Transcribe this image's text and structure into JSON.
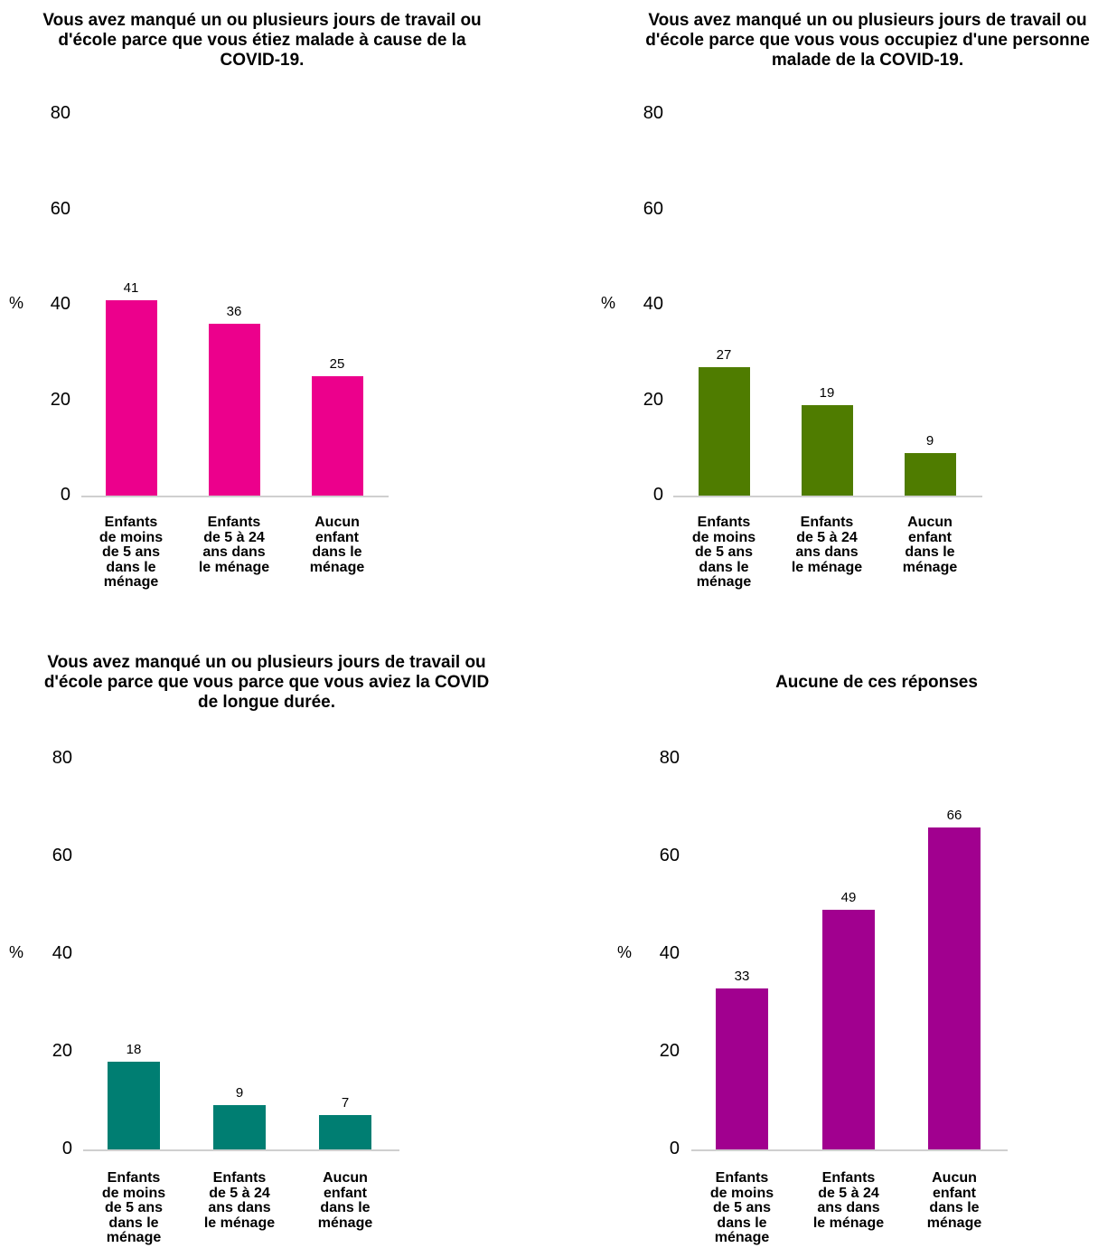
{
  "chart_data": [
    {
      "type": "bar",
      "title": "Vous avez manqué un ou plusieurs jours de travail ou d'école parce que vous étiez malade à cause de la COVID-19.",
      "ylabel": "%",
      "ylim": [
        0,
        80
      ],
      "yticks": [
        "0",
        "20",
        "40",
        "60",
        "80"
      ],
      "categories": [
        "Enfants de moins de 5 ans dans le ménage",
        "Enfants de 5 à 24 ans dans le ménage",
        "Aucun enfant dans le ménage"
      ],
      "values": [
        41,
        36,
        25
      ],
      "color": "#ec008c",
      "grid": false
    },
    {
      "type": "bar",
      "title": "Vous avez manqué un ou plusieurs jours de travail ou d'école parce que vous vous occupiez d'une personne malade de la COVID-19.",
      "ylabel": "%",
      "ylim": [
        0,
        80
      ],
      "yticks": [
        "0",
        "20",
        "40",
        "60",
        "80"
      ],
      "categories": [
        "Enfants de moins de 5 ans dans le ménage",
        "Enfants de 5 à 24 ans dans le ménage",
        "Aucun enfant dans le ménage"
      ],
      "values": [
        27,
        19,
        9
      ],
      "color": "#4f7c00",
      "grid": false
    },
    {
      "type": "bar",
      "title": "Vous avez manqué un ou plusieurs jours de travail ou d'école parce que vous parce que vous aviez la COVID de longue durée.",
      "ylabel": "%",
      "ylim": [
        0,
        80
      ],
      "yticks": [
        "0",
        "20",
        "40",
        "60",
        "80"
      ],
      "categories": [
        "Enfants de moins de 5 ans dans le ménage",
        "Enfants de 5 à 24 ans dans le ménage",
        "Aucun enfant dans le ménage"
      ],
      "values": [
        18,
        9,
        7
      ],
      "color": "#007e72",
      "grid": false
    },
    {
      "type": "bar",
      "title": "Aucune de ces réponses",
      "ylabel": "%",
      "ylim": [
        0,
        80
      ],
      "yticks": [
        "0",
        "20",
        "40",
        "60",
        "80"
      ],
      "categories": [
        "Enfants de moins de 5 ans dans le ménage",
        "Enfants de 5 à 24 ans dans le ménage",
        "Aucun enfant dans le ménage"
      ],
      "values": [
        33,
        49,
        66
      ],
      "color": "#a1008f",
      "grid": false
    }
  ]
}
